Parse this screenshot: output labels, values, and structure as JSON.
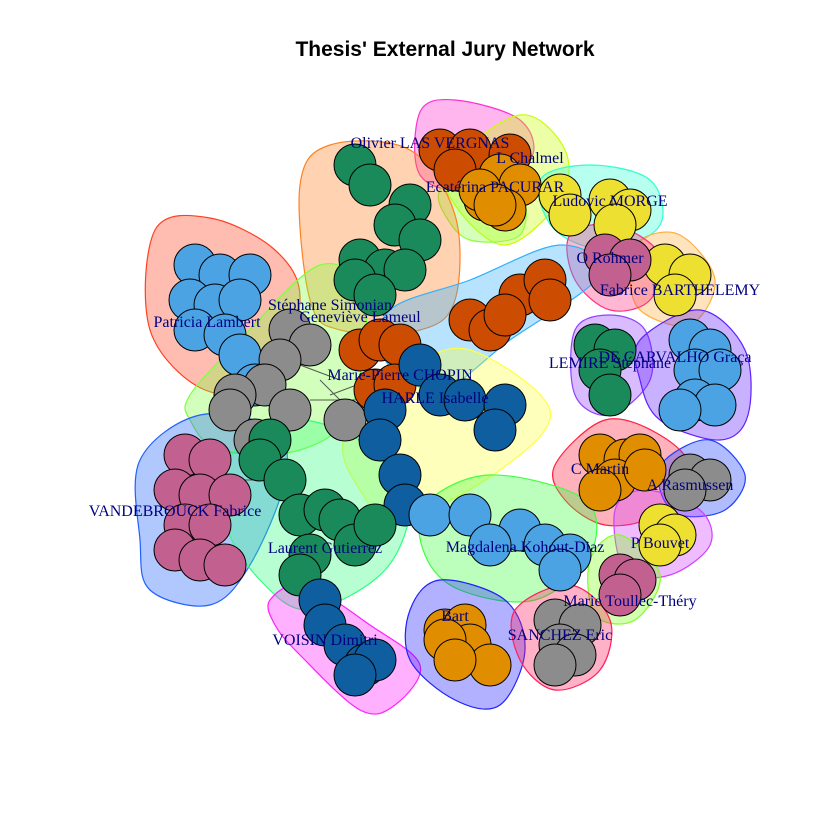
{
  "title": "Thesis' External Jury Network",
  "palette": {
    "orange": "#D95F02",
    "red": "#CC4C02",
    "green": "#1B8A5A",
    "lightblue": "#4BA3E3",
    "darkblue": "#0F5FA0",
    "grey": "#8C8C8C",
    "pink": "#C2618F",
    "amber": "#E08E00",
    "yellow": "#EEE030"
  },
  "communities": [
    {
      "label": "Olivier LAS VERGNAS",
      "node_color": "red",
      "hull_color": "#FF2FD0"
    },
    {
      "label": "L Chalmel",
      "node_color": "amber",
      "hull_color": "#C8FF00"
    },
    {
      "label": "Ecatérina PACURAR",
      "node_color": "amber",
      "hull_color": "#8CFF40"
    },
    {
      "label": "Ludovic MORGE",
      "node_color": "yellow",
      "hull_color": "#30FFD0"
    },
    {
      "label": "Fabrice BARTHELEMY",
      "node_color": "yellow",
      "hull_color": "#FFB040"
    },
    {
      "label": "O Rohmer",
      "node_color": "pink",
      "hull_color": "#FF3080"
    },
    {
      "label": "Patricia Lambert",
      "node_color": "lightblue",
      "hull_color": "#FF4020"
    },
    {
      "label": "Stéphane Simonian",
      "node_color": "green",
      "hull_color": "#FF8020"
    },
    {
      "label": "Geneviève Lameul",
      "node_color": "grey",
      "hull_color": "#80FF40"
    },
    {
      "label": "Marie-Pierre CHOPIN",
      "node_color": "red",
      "hull_color": "#30B0FF"
    },
    {
      "label": "HARLE Isabelle",
      "node_color": "darkblue",
      "hull_color": "#FFFF40"
    },
    {
      "label": "LEMIRE Stéphane",
      "node_color": "green",
      "hull_color": "#9040FF"
    },
    {
      "label": "DE CARVALHO Graça",
      "node_color": "lightblue",
      "hull_color": "#6020FF"
    },
    {
      "label": "VANDEBROUCK Fabrice",
      "node_color": "pink",
      "hull_color": "#2060FF"
    },
    {
      "label": "C Martin",
      "node_color": "amber",
      "hull_color": "#FF2040"
    },
    {
      "label": "A Rasmussen",
      "node_color": "grey",
      "hull_color": "#2040FF"
    },
    {
      "label": "P Bouvet",
      "node_color": "yellow",
      "hull_color": "#D040FF"
    },
    {
      "label": "Laurent Gutierrez",
      "node_color": "green",
      "hull_color": "#30FF80"
    },
    {
      "label": "Magdalena Kohout-Diaz",
      "node_color": "lightblue",
      "hull_color": "#40FF40"
    },
    {
      "label": "Marie Toullec-Théry",
      "node_color": "pink",
      "hull_color": "#80FF20"
    },
    {
      "label": "VOISIN Dimitri",
      "node_color": "darkblue",
      "hull_color": "#FF20FF"
    },
    {
      "label": "Bart",
      "node_color": "amber",
      "hull_color": "#2020FF"
    },
    {
      "label": "SANCHEZ Eric",
      "node_color": "grey",
      "hull_color": "#FF2060"
    }
  ]
}
